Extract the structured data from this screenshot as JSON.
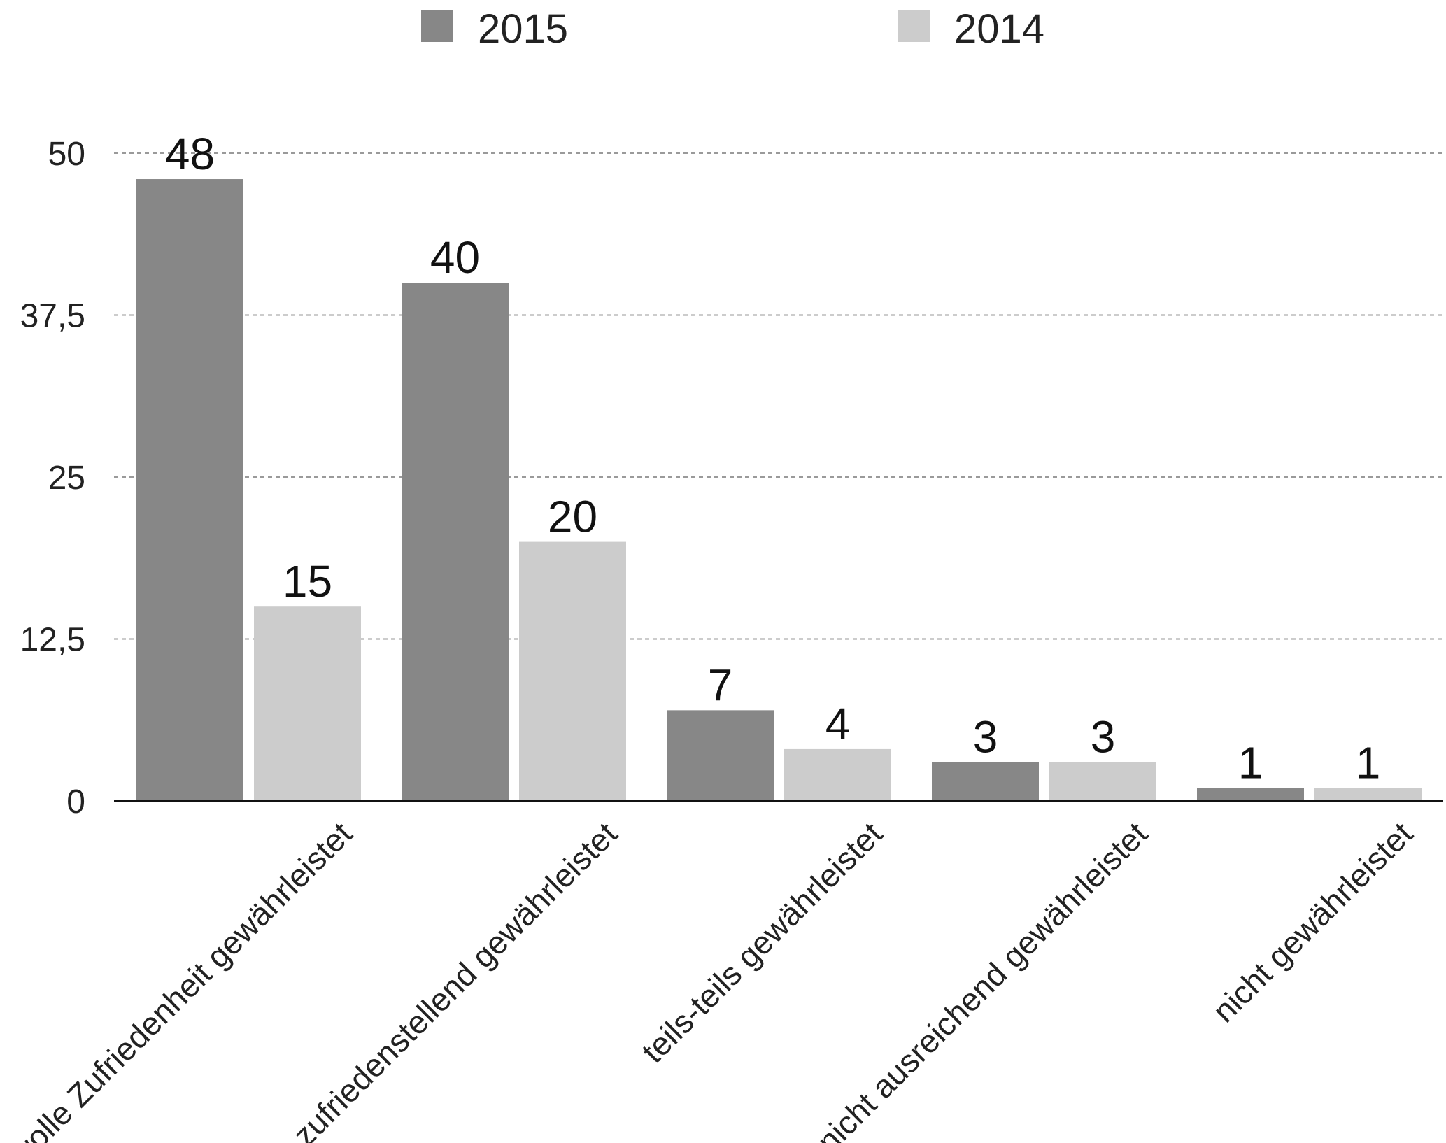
{
  "chart_data": {
    "type": "bar",
    "categories": [
      "volle Zufriedenheit gewährleistet",
      "zufriedenstellend gewährleistet",
      "teils-teils gewährleistet",
      "nicht ausreichend gewährleistet",
      "nicht gewährleistet"
    ],
    "series": [
      {
        "name": "2015",
        "color": "#878787",
        "values": [
          48,
          40,
          7,
          3,
          1
        ]
      },
      {
        "name": "2014",
        "color": "#cccccc",
        "values": [
          15,
          20,
          4,
          3,
          1
        ]
      }
    ],
    "yticks": [
      0,
      12.5,
      25,
      37.5,
      50
    ],
    "ytick_labels": [
      "0",
      "12,5",
      "25",
      "37,5",
      "50"
    ],
    "ylim": [
      0,
      50
    ],
    "grid": "horizontal-dashed",
    "legend_position": "top",
    "title": "",
    "xlabel": "",
    "ylabel": ""
  }
}
